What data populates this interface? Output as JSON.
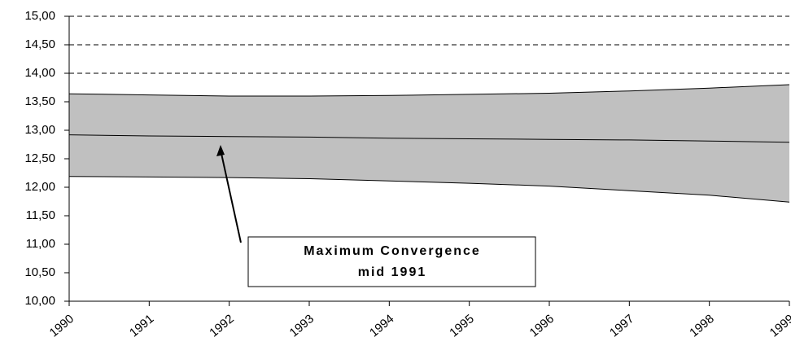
{
  "chart_data": {
    "type": "band",
    "x": [
      1990,
      1991,
      1992,
      1993,
      1994,
      1995,
      1996,
      1997,
      1998,
      1999
    ],
    "series": [
      {
        "color": "#000000",
        "values": [
          12.19,
          12.18,
          12.17,
          12.15,
          12.11,
          12.07,
          12.02,
          11.94,
          11.86,
          11.74
        ]
      },
      {
        "color": "#000000",
        "values": [
          12.92,
          12.9,
          12.89,
          12.88,
          12.86,
          12.85,
          12.84,
          12.83,
          12.81,
          12.79
        ]
      },
      {
        "color": "#000000",
        "values": [
          13.64,
          13.62,
          13.6,
          13.6,
          13.61,
          13.63,
          13.65,
          13.69,
          13.74,
          13.8
        ]
      }
    ],
    "band_color": "#c0c0c0",
    "xlim": [
      1990,
      1999
    ],
    "xticks": [
      1990,
      1991,
      1992,
      1993,
      1994,
      1995,
      1996,
      1997,
      1998,
      1999
    ],
    "ylim": [
      10,
      15
    ],
    "yticks": [
      {
        "value": 10,
        "label": "10,00"
      },
      {
        "value": 10.5,
        "label": "10,50"
      },
      {
        "value": 11,
        "label": "11,00"
      },
      {
        "value": 11.5,
        "label": "11,50"
      },
      {
        "value": 12,
        "label": "12,00"
      },
      {
        "value": 12.5,
        "label": "12,50"
      },
      {
        "value": 13,
        "label": "13,00"
      },
      {
        "value": 13.5,
        "label": "13,50"
      },
      {
        "value": 14,
        "label": "14,00"
      },
      {
        "value": 14.5,
        "label": "14,50"
      },
      {
        "value": 15,
        "label": "15,00"
      }
    ],
    "grid": true,
    "annotation": {
      "lines": [
        "Maximum Convergence",
        "mid 1991"
      ]
    }
  }
}
